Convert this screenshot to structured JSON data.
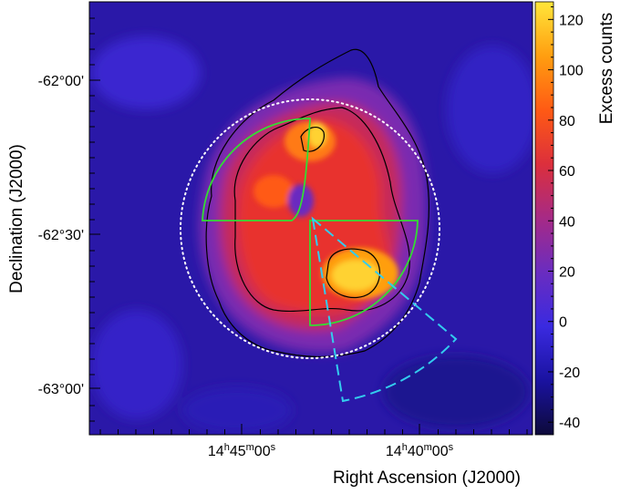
{
  "chart_data": {
    "type": "heatmap",
    "title": "",
    "xlabel": "Right Ascension (J2000)",
    "ylabel": "Declination (J2000)",
    "colorbar_label": "Excess counts",
    "colorbar_range": [
      -45,
      127
    ],
    "colorbar_ticks": [
      -40,
      -20,
      0,
      20,
      40,
      60,
      80,
      100,
      120
    ],
    "colorscale": [
      "#0d0a3a",
      "#1a12a0",
      "#3a2ae0",
      "#6a2cc0",
      "#a62a86",
      "#dc2f3c",
      "#ff5a14",
      "#ff9e10",
      "#ffe63a"
    ],
    "x_ticks": [
      {
        "value": "14h45m00s",
        "h": "14",
        "m": "45",
        "s": "00"
      },
      {
        "value": "14h40m00s",
        "h": "14",
        "m": "40",
        "s": "00"
      }
    ],
    "y_ticks": [
      "-62°00'",
      "-62°30'",
      "-63°00'"
    ],
    "features": {
      "excess_region": {
        "peak_excess": 120,
        "shape": "ring-like shell"
      },
      "contours": [
        "black contour lines of excess significance"
      ],
      "overlays": [
        {
          "name": "white dotted circle",
          "style": "dotted",
          "color": "#ffffff"
        },
        {
          "name": "green analysis region (half circle split at center)",
          "style": "solid",
          "color": "#33dd33"
        },
        {
          "name": "cyan wedge region",
          "style": "dashed",
          "color": "#33ccee"
        }
      ]
    }
  }
}
